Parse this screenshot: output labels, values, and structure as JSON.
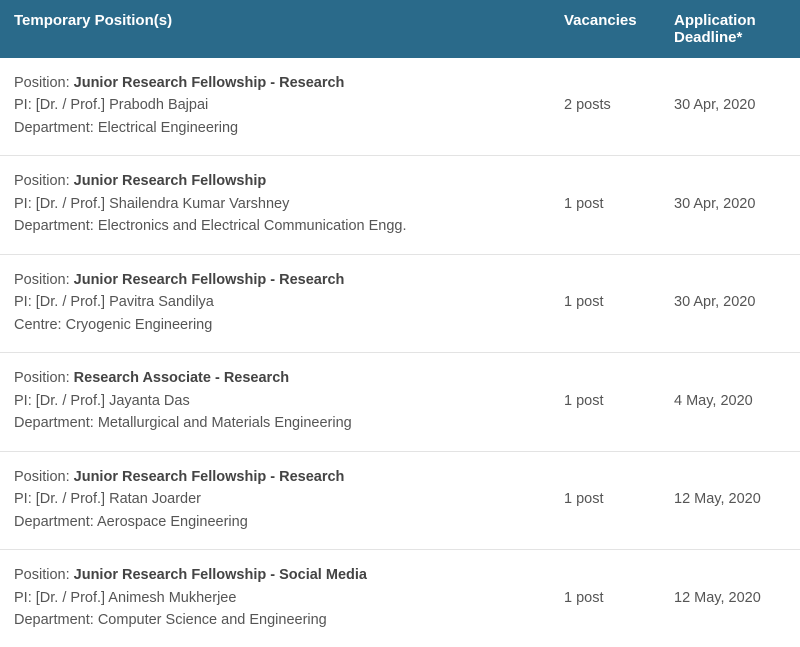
{
  "columns": {
    "position": "Temporary Position(s)",
    "vacancies": "Vacancies",
    "deadline": "Application Deadline*"
  },
  "labels": {
    "position": "Position: ",
    "pi": "PI: [Dr. / Prof.] ",
    "department": "Department: ",
    "centre": "Centre: "
  },
  "rows": [
    {
      "title": "Junior Research Fellowship - Research",
      "pi": "Prabodh Bajpai",
      "org_type": "department",
      "org": "Electrical Engineering",
      "vacancies": "2 posts",
      "deadline": "30 Apr, 2020"
    },
    {
      "title": "Junior Research Fellowship",
      "pi": "Shailendra Kumar Varshney",
      "org_type": "department",
      "org": "Electronics and Electrical Communication Engg.",
      "vacancies": "1 post",
      "deadline": "30 Apr, 2020"
    },
    {
      "title": "Junior Research Fellowship - Research",
      "pi": "Pavitra Sandilya",
      "org_type": "centre",
      "org": "Cryogenic Engineering",
      "vacancies": "1 post",
      "deadline": "30 Apr, 2020"
    },
    {
      "title": "Research Associate - Research",
      "pi": "Jayanta Das",
      "org_type": "department",
      "org": "Metallurgical and Materials Engineering",
      "vacancies": "1 post",
      "deadline": "4 May, 2020"
    },
    {
      "title": "Junior Research Fellowship - Research",
      "pi": "Ratan Joarder",
      "org_type": "department",
      "org": "Aerospace Engineering",
      "vacancies": "1 post",
      "deadline": "12 May, 2020"
    },
    {
      "title": "Junior Research Fellowship - Social Media",
      "pi": "Animesh Mukherjee",
      "org_type": "department",
      "org": "Computer Science and Engineering",
      "vacancies": "1 post",
      "deadline": "12 May, 2020"
    }
  ]
}
